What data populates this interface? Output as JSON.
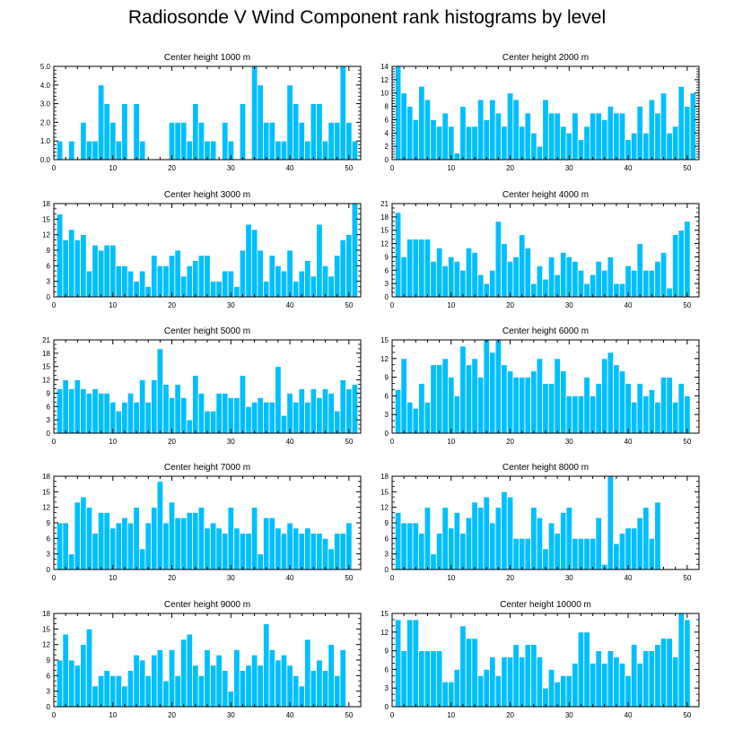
{
  "title": "Radiosonde V Wind Component rank histograms by level",
  "colors": {
    "bar": "#00BFFF",
    "bar_edge": "#ffffff",
    "axis": "#000000"
  },
  "chart_data": [
    {
      "type": "bar",
      "title": "Center height 1000 m",
      "xlim": [
        0,
        52
      ],
      "xticks": [
        0,
        10,
        20,
        30,
        40,
        50
      ],
      "ylim": [
        0,
        5
      ],
      "yticks": [
        0,
        1,
        2,
        3,
        4,
        5
      ],
      "ytick_labels": [
        "0.0",
        "1.0",
        "2.0",
        "3.0",
        "4.0",
        "5.0"
      ],
      "values": [
        1,
        0,
        1,
        0,
        2,
        1,
        1,
        4,
        3,
        2,
        1,
        3,
        0,
        3,
        1,
        0,
        0,
        0,
        0,
        2,
        2,
        2,
        1,
        3,
        2,
        1,
        1,
        0,
        2,
        1,
        0,
        3,
        0,
        5,
        4,
        2,
        2,
        1,
        1,
        4,
        3,
        2,
        1,
        3,
        3,
        1,
        2,
        2,
        5,
        2,
        1
      ]
    },
    {
      "type": "bar",
      "title": "Center height 2000 m",
      "xlim": [
        0,
        52
      ],
      "xticks": [
        0,
        10,
        20,
        30,
        40,
        50
      ],
      "ylim": [
        0,
        14
      ],
      "yticks": [
        0,
        2,
        4,
        6,
        8,
        10,
        12,
        14
      ],
      "ytick_labels": [
        "0",
        "2",
        "4",
        "6",
        "8",
        "10",
        "12",
        "14"
      ],
      "values": [
        14,
        10,
        8,
        6,
        11,
        9,
        6,
        5,
        7,
        5,
        1,
        8,
        5,
        5,
        9,
        6,
        9,
        7,
        5,
        10,
        9,
        5,
        7,
        4,
        2,
        9,
        7,
        7,
        5,
        4,
        7,
        3,
        5,
        7,
        7,
        6,
        8,
        7,
        7,
        3,
        4,
        8,
        4,
        9,
        7,
        10,
        4,
        5,
        11,
        8,
        10
      ]
    },
    {
      "type": "bar",
      "title": "Center height 3000 m",
      "xlim": [
        0,
        52
      ],
      "xticks": [
        0,
        10,
        20,
        30,
        40,
        50
      ],
      "ylim": [
        0,
        18
      ],
      "yticks": [
        0,
        3,
        6,
        9,
        12,
        15,
        18
      ],
      "ytick_labels": [
        "0",
        "3",
        "6",
        "9",
        "12",
        "15",
        "18"
      ],
      "values": [
        16,
        11,
        13,
        11,
        12,
        5,
        10,
        9,
        10,
        10,
        6,
        6,
        5,
        3,
        5,
        2,
        8,
        6,
        6,
        8,
        9,
        4,
        6,
        7,
        8,
        8,
        3,
        3,
        5,
        5,
        2,
        9,
        14,
        13,
        9,
        3,
        8,
        6,
        5,
        9,
        3,
        5,
        7,
        4,
        14,
        6,
        4,
        8,
        11,
        12,
        18
      ]
    },
    {
      "type": "bar",
      "title": "Center height 4000 m",
      "xlim": [
        0,
        52
      ],
      "xticks": [
        0,
        10,
        20,
        30,
        40,
        50
      ],
      "ylim": [
        0,
        21
      ],
      "yticks": [
        0,
        3,
        6,
        9,
        12,
        15,
        18,
        21
      ],
      "ytick_labels": [
        "0",
        "3",
        "6",
        "9",
        "12",
        "15",
        "18",
        "21"
      ],
      "values": [
        19,
        9,
        13,
        13,
        13,
        13,
        8,
        11,
        7,
        9,
        8,
        6,
        11,
        10,
        5,
        3,
        6,
        17,
        12,
        8,
        9,
        14,
        11,
        3,
        7,
        4,
        9,
        5,
        10,
        9,
        8,
        6,
        3,
        5,
        8,
        6,
        9,
        3,
        3,
        7,
        6,
        12,
        6,
        6,
        8,
        10,
        2,
        14,
        15,
        17
      ]
    },
    {
      "type": "bar",
      "title": "Center height 5000 m",
      "xlim": [
        0,
        52
      ],
      "xticks": [
        0,
        10,
        20,
        30,
        40,
        50
      ],
      "ylim": [
        0,
        21
      ],
      "yticks": [
        0,
        3,
        6,
        9,
        12,
        15,
        18,
        21
      ],
      "ytick_labels": [
        "0",
        "3",
        "6",
        "9",
        "12",
        "15",
        "18",
        "21"
      ],
      "values": [
        10,
        12,
        10,
        12,
        10,
        9,
        10,
        9,
        9,
        7,
        5,
        7,
        9,
        7,
        12,
        7,
        12,
        19,
        11,
        8,
        11,
        8,
        3,
        13,
        9,
        5,
        5,
        9,
        9,
        8,
        8,
        13,
        6,
        7,
        8,
        7,
        7,
        15,
        4,
        9,
        7,
        10,
        7,
        10,
        8,
        10,
        9,
        5,
        12,
        10,
        11
      ]
    },
    {
      "type": "bar",
      "title": "Center height 6000 m",
      "xlim": [
        0,
        52
      ],
      "xticks": [
        0,
        10,
        20,
        30,
        40,
        50
      ],
      "ylim": [
        0,
        15
      ],
      "yticks": [
        0,
        3,
        6,
        9,
        12,
        15
      ],
      "ytick_labels": [
        "0",
        "3",
        "6",
        "9",
        "12",
        "15"
      ],
      "values": [
        7,
        12,
        5,
        4,
        8,
        5,
        11,
        11,
        12,
        9,
        6,
        14,
        11,
        12,
        9,
        15,
        13,
        15,
        11,
        10,
        9,
        9,
        9,
        10,
        12,
        8,
        8,
        12,
        10,
        6,
        6,
        6,
        9,
        6,
        8,
        12,
        13,
        11,
        10,
        8,
        5,
        8,
        6,
        7,
        5,
        9,
        9,
        5,
        8,
        6
      ]
    },
    {
      "type": "bar",
      "title": "Center height 7000 m",
      "xlim": [
        0,
        52
      ],
      "xticks": [
        0,
        10,
        20,
        30,
        40,
        50
      ],
      "ylim": [
        0,
        18
      ],
      "yticks": [
        0,
        3,
        6,
        9,
        12,
        15,
        18
      ],
      "ytick_labels": [
        "0",
        "3",
        "6",
        "9",
        "12",
        "15",
        "18"
      ],
      "values": [
        9,
        9,
        3,
        13,
        14,
        12,
        7,
        11,
        11,
        8,
        9,
        10,
        9,
        12,
        4,
        9,
        12,
        17,
        9,
        13,
        10,
        10,
        11,
        11,
        12,
        8,
        9,
        8,
        7,
        12,
        8,
        7,
        7,
        12,
        3,
        10,
        10,
        8,
        7,
        9,
        8,
        7,
        8,
        7,
        7,
        6,
        4,
        7,
        7,
        9
      ]
    },
    {
      "type": "bar",
      "title": "Center height 8000 m",
      "xlim": [
        0,
        52
      ],
      "xticks": [
        0,
        10,
        20,
        30,
        40,
        50
      ],
      "ylim": [
        0,
        18
      ],
      "yticks": [
        0,
        3,
        6,
        9,
        12,
        15,
        18
      ],
      "ytick_labels": [
        "0",
        "3",
        "6",
        "9",
        "12",
        "15",
        "18"
      ],
      "values": [
        11,
        9,
        9,
        9,
        7,
        12,
        3,
        7,
        12,
        8,
        11,
        7,
        10,
        13,
        12,
        14,
        9,
        12,
        15,
        14,
        6,
        6,
        6,
        12,
        10,
        4,
        9,
        7,
        11,
        12,
        6,
        6,
        6,
        6,
        10,
        1,
        18,
        5,
        7,
        8,
        8,
        10,
        12,
        6,
        13
      ]
    },
    {
      "type": "bar",
      "title": "Center height 9000 m",
      "xlim": [
        0,
        52
      ],
      "xticks": [
        0,
        10,
        20,
        30,
        40,
        50
      ],
      "ylim": [
        0,
        18
      ],
      "yticks": [
        0,
        3,
        6,
        9,
        12,
        15,
        18
      ],
      "ytick_labels": [
        "0",
        "3",
        "6",
        "9",
        "12",
        "15",
        "18"
      ],
      "values": [
        9,
        14,
        9,
        8,
        12,
        15,
        4,
        6,
        7,
        6,
        6,
        4,
        7,
        10,
        9,
        6,
        10,
        11,
        5,
        11,
        6,
        13,
        14,
        8,
        6,
        11,
        8,
        10,
        7,
        3,
        11,
        7,
        8,
        10,
        8,
        16,
        11,
        9,
        10,
        8,
        6,
        4,
        13,
        7,
        9,
        7,
        12,
        6,
        11
      ]
    },
    {
      "type": "bar",
      "title": "Center height 10000 m",
      "xlim": [
        0,
        52
      ],
      "xticks": [
        0,
        10,
        20,
        30,
        40,
        50
      ],
      "ylim": [
        0,
        15
      ],
      "yticks": [
        0,
        3,
        6,
        9,
        12,
        15
      ],
      "ytick_labels": [
        "0",
        "3",
        "6",
        "9",
        "12",
        "15"
      ],
      "values": [
        14,
        9,
        14,
        14,
        9,
        9,
        9,
        9,
        4,
        4,
        6,
        13,
        11,
        11,
        5,
        6,
        8,
        5,
        8,
        8,
        10,
        8,
        10,
        10,
        8,
        3,
        6,
        4,
        5,
        5,
        7,
        12,
        12,
        7,
        9,
        7,
        9,
        8,
        7,
        5,
        10,
        7,
        9,
        9,
        10,
        11,
        11,
        8,
        15,
        14
      ]
    }
  ]
}
